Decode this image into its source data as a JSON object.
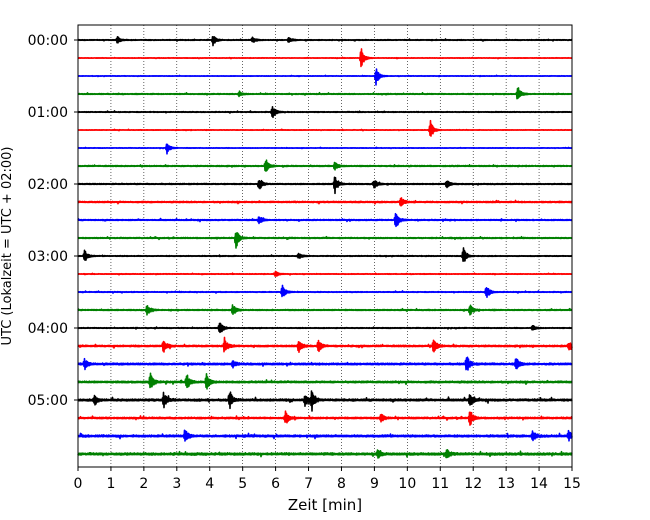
{
  "chart_data": {
    "type": "line",
    "xlabel": "Zeit  [min]",
    "ylabel": "UTC (Lokalzeit = UTC + 02:00)",
    "xlim": [
      0,
      15
    ],
    "x_ticks": [
      "0",
      "1",
      "2",
      "3",
      "4",
      "5",
      "6",
      "7",
      "8",
      "9",
      "10",
      "11",
      "12",
      "13",
      "14",
      "15"
    ],
    "y_tick_labels": [
      "00:00",
      "01:00",
      "02:00",
      "03:00",
      "04:00",
      "05:00"
    ],
    "grid": "vertical-dotted",
    "trace_colors": [
      "#000000",
      "#ff0000",
      "#0000ff",
      "#008000"
    ],
    "traces_per_hour": 4,
    "trace_count": 24,
    "trace_interval_min": 15,
    "background_amplitude": [
      0.3,
      0.2,
      0.2,
      0.35,
      0.3,
      0.2,
      0.2,
      0.4,
      0.4,
      0.5,
      0.4,
      0.4,
      0.3,
      0.25,
      0.3,
      0.4,
      0.3,
      0.6,
      0.7,
      0.7,
      0.8,
      0.6,
      0.8,
      0.9
    ],
    "events": [
      {
        "trace": 0,
        "t": 1.2,
        "amp": 1.2
      },
      {
        "trace": 0,
        "t": 4.1,
        "amp": 1.8
      },
      {
        "trace": 0,
        "t": 5.3,
        "amp": 1.2
      },
      {
        "trace": 0,
        "t": 6.4,
        "amp": 1.0
      },
      {
        "trace": 1,
        "t": 8.6,
        "amp": 3.5
      },
      {
        "trace": 2,
        "t": 9.05,
        "amp": 3.0
      },
      {
        "trace": 3,
        "t": 4.9,
        "amp": 1.0
      },
      {
        "trace": 3,
        "t": 13.35,
        "amp": 2.8
      },
      {
        "trace": 4,
        "t": 5.9,
        "amp": 2.5
      },
      {
        "trace": 5,
        "t": 10.7,
        "amp": 3.2
      },
      {
        "trace": 6,
        "t": 2.7,
        "amp": 2.0
      },
      {
        "trace": 7,
        "t": 5.7,
        "amp": 2.6
      },
      {
        "trace": 7,
        "t": 7.8,
        "amp": 1.6
      },
      {
        "trace": 8,
        "t": 5.5,
        "amp": 2.3
      },
      {
        "trace": 8,
        "t": 7.8,
        "amp": 3.2
      },
      {
        "trace": 8,
        "t": 9.0,
        "amp": 1.5
      },
      {
        "trace": 8,
        "t": 11.2,
        "amp": 1.5
      },
      {
        "trace": 9,
        "t": 9.8,
        "amp": 1.6
      },
      {
        "trace": 10,
        "t": 5.5,
        "amp": 1.4
      },
      {
        "trace": 10,
        "t": 9.65,
        "amp": 3.2
      },
      {
        "trace": 11,
        "t": 4.8,
        "amp": 3.5
      },
      {
        "trace": 12,
        "t": 0.2,
        "amp": 2.2
      },
      {
        "trace": 12,
        "t": 6.7,
        "amp": 1.2
      },
      {
        "trace": 12,
        "t": 11.7,
        "amp": 3.0
      },
      {
        "trace": 13,
        "t": 6.0,
        "amp": 1.0
      },
      {
        "trace": 14,
        "t": 6.2,
        "amp": 2.5
      },
      {
        "trace": 14,
        "t": 12.4,
        "amp": 2.5
      },
      {
        "trace": 15,
        "t": 2.1,
        "amp": 1.8
      },
      {
        "trace": 15,
        "t": 4.7,
        "amp": 2.2
      },
      {
        "trace": 15,
        "t": 11.9,
        "amp": 1.8
      },
      {
        "trace": 16,
        "t": 4.3,
        "amp": 2.8
      },
      {
        "trace": 16,
        "t": 13.8,
        "amp": 1.0
      },
      {
        "trace": 17,
        "t": 2.6,
        "amp": 2.6
      },
      {
        "trace": 17,
        "t": 4.45,
        "amp": 2.8
      },
      {
        "trace": 17,
        "t": 6.7,
        "amp": 2.5
      },
      {
        "trace": 17,
        "t": 7.3,
        "amp": 2.3
      },
      {
        "trace": 17,
        "t": 10.8,
        "amp": 3.0
      },
      {
        "trace": 17,
        "t": 14.9,
        "amp": 1.5
      },
      {
        "trace": 18,
        "t": 0.2,
        "amp": 1.8
      },
      {
        "trace": 18,
        "t": 4.7,
        "amp": 1.3
      },
      {
        "trace": 18,
        "t": 11.8,
        "amp": 3.0
      },
      {
        "trace": 18,
        "t": 13.3,
        "amp": 2.6
      },
      {
        "trace": 19,
        "t": 2.2,
        "amp": 3.2
      },
      {
        "trace": 19,
        "t": 3.3,
        "amp": 2.7
      },
      {
        "trace": 19,
        "t": 3.9,
        "amp": 2.8
      },
      {
        "trace": 20,
        "t": 0.5,
        "amp": 1.8
      },
      {
        "trace": 20,
        "t": 2.6,
        "amp": 2.8
      },
      {
        "trace": 20,
        "t": 4.6,
        "amp": 3.5
      },
      {
        "trace": 20,
        "t": 6.9,
        "amp": 2.2
      },
      {
        "trace": 20,
        "t": 7.1,
        "amp": 3.5
      },
      {
        "trace": 20,
        "t": 11.9,
        "amp": 2.5
      },
      {
        "trace": 21,
        "t": 6.3,
        "amp": 2.5
      },
      {
        "trace": 21,
        "t": 9.2,
        "amp": 1.5
      },
      {
        "trace": 21,
        "t": 11.9,
        "amp": 2.8
      },
      {
        "trace": 22,
        "t": 3.25,
        "amp": 2.5
      },
      {
        "trace": 22,
        "t": 13.8,
        "amp": 2.0
      },
      {
        "trace": 22,
        "t": 14.9,
        "amp": 1.8
      },
      {
        "trace": 23,
        "t": 9.1,
        "amp": 1.4
      },
      {
        "trace": 23,
        "t": 11.2,
        "amp": 1.6
      }
    ]
  }
}
